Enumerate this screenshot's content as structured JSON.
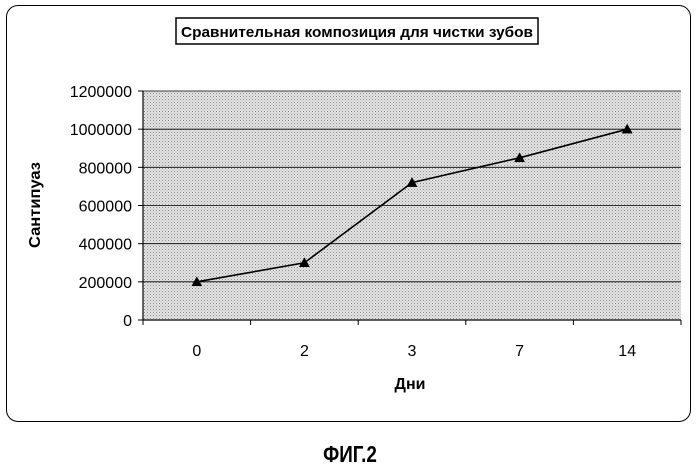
{
  "chart_data": {
    "type": "line",
    "title": "Сравнительная композиция для чистки зубов",
    "xlabel": "Дни",
    "ylabel": "Сантипуаз",
    "categories": [
      "0",
      "2",
      "3",
      "7",
      "14"
    ],
    "values": [
      200000,
      300000,
      720000,
      850000,
      1000000
    ],
    "ylim": [
      0,
      1200000
    ],
    "yticks": [
      "0",
      "200000",
      "400000",
      "600000",
      "800000",
      "1000000",
      "1200000"
    ],
    "grid": true,
    "legend": "none",
    "marker": "triangle",
    "colors": {
      "line": "#000000",
      "plot_background": "#cfcfcf",
      "gridline": "#000000"
    }
  },
  "caption": "ФИГ.2"
}
